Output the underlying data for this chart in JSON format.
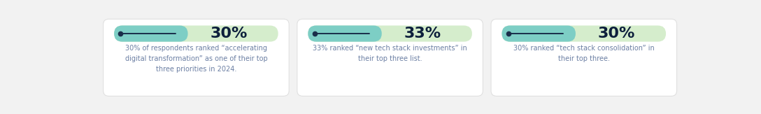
{
  "cards": [
    {
      "percent": "30%",
      "description": "30% of respondents ranked “accelerating\ndigital transformation” as one of their top\nthree priorities in 2024."
    },
    {
      "percent": "33%",
      "description": "33% ranked “new tech stack investments” in\ntheir top three list."
    },
    {
      "percent": "30%",
      "description": "30% ranked “tech stack consolidation” in\ntheir top three."
    }
  ],
  "bg_color": "#f2f2f2",
  "card_bg": "#ffffff",
  "teal_color": "#7dcec5",
  "green_color": "#d5edcc",
  "percent_color": "#0d1f3c",
  "desc_color": "#6b7fa3",
  "dot_line_color": "#1a2e4a",
  "card_edge_color": "#e0e0e0",
  "teal_split": 0.4
}
